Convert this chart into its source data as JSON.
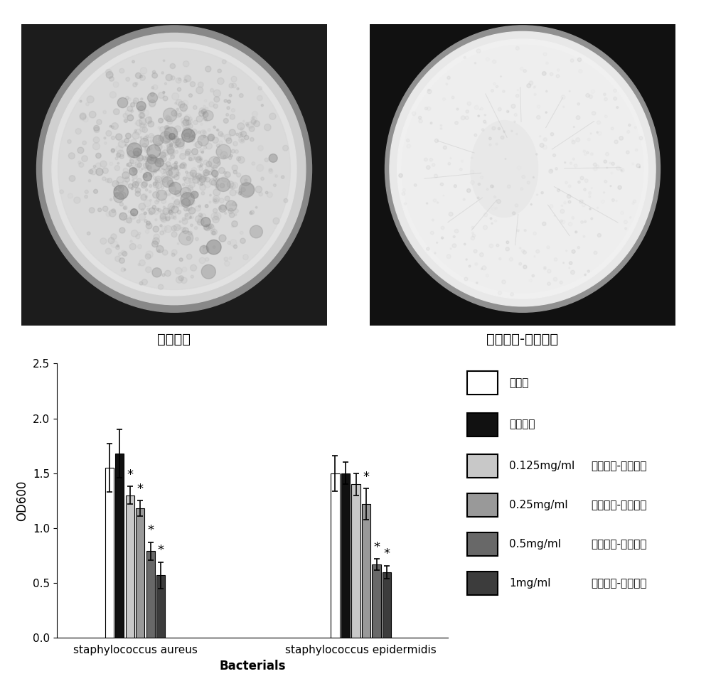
{
  "left_label": "矿化胶原",
  "right_label": "銀纳米线-矿化胶原",
  "ylabel": "OD600",
  "xlabel": "Bacterials",
  "ylim": [
    0.0,
    2.5
  ],
  "yticks": [
    0.0,
    0.5,
    1.0,
    1.5,
    2.0,
    2.5
  ],
  "group1_label": "staphylococcus aureus",
  "group2_label": "staphylococcus epidermidis",
  "bar_colors": [
    "#ffffff",
    "#111111",
    "#c8c8c8",
    "#999999",
    "#686868",
    "#3c3c3c"
  ],
  "bar_edgecolors": [
    "#000000",
    "#000000",
    "#000000",
    "#000000",
    "#000000",
    "#000000"
  ],
  "group1_values": [
    1.55,
    1.68,
    1.3,
    1.18,
    0.79,
    0.57
  ],
  "group1_errors": [
    0.22,
    0.22,
    0.08,
    0.07,
    0.08,
    0.12
  ],
  "group2_values": [
    1.5,
    1.5,
    1.4,
    1.22,
    0.67,
    0.6
  ],
  "group2_errors": [
    0.16,
    0.1,
    0.1,
    0.14,
    0.05,
    0.06
  ],
  "group1_sig": [
    false,
    false,
    true,
    true,
    true,
    true
  ],
  "group2_sig": [
    false,
    false,
    false,
    true,
    true,
    true
  ],
  "legend_label1": "对照组",
  "legend_label2": "矿化胶原",
  "legend_label3": "0.125mg/ml",
  "legend_label3b": "銀纳米线-矿化胶原",
  "legend_label4": "0.25mg/ml",
  "legend_label4b": "銀纳米线-矿化胶原",
  "legend_label5": "0.5mg/ml",
  "legend_label5b": "銀纳米线-矿化胶原",
  "legend_label6": "1mg/ml",
  "legend_label6b": "銀纳米线-矿化胶原",
  "bar_width": 0.055,
  "font_size_label": 12,
  "font_size_tick": 11,
  "font_size_legend": 11,
  "font_size_group_label": 11,
  "image_bg_color": "#f5f5f5",
  "petri_left_bg": "#1a1a1a",
  "petri_right_bg": "#111111"
}
